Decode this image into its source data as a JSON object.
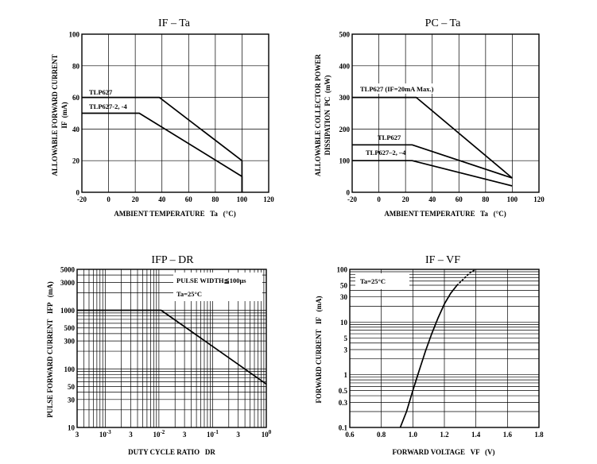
{
  "chart_data": [
    {
      "type": "line",
      "title": "IF – Ta",
      "xlabel": "AMBIENT TEMPERATURE   Ta   (°C)",
      "ylabel": "ALLOWABLE FORWARD CURRENT",
      "ylabel_sub": "IF  (mA)",
      "xlim": [
        -20,
        120
      ],
      "ylim": [
        0,
        100
      ],
      "xticks": [
        -20,
        0,
        20,
        40,
        60,
        80,
        100,
        120
      ],
      "yticks": [
        0,
        20,
        40,
        60,
        80,
        100
      ],
      "grid": true,
      "series": [
        {
          "name": "TLP627",
          "x": [
            -20,
            38,
            100,
            100
          ],
          "y": [
            60,
            60,
            20,
            0
          ]
        },
        {
          "name": "TLP627-2, -4",
          "x": [
            -20,
            23,
            100,
            100
          ],
          "y": [
            50,
            50,
            10,
            0
          ]
        }
      ]
    },
    {
      "type": "line",
      "title": "PC – Ta",
      "xlabel": "AMBIENT TEMPERATURE   Ta   (°C)",
      "ylabel": "ALLOWABLE COLLECTOR POWER",
      "ylabel_sub": "DISSIPATION  PC  (mW)",
      "xlim": [
        -20,
        120
      ],
      "ylim": [
        0,
        500
      ],
      "xticks": [
        -20,
        0,
        20,
        40,
        60,
        80,
        100,
        120
      ],
      "yticks": [
        0,
        100,
        200,
        300,
        400,
        500
      ],
      "grid": true,
      "series": [
        {
          "name": "TLP627 (IF=20mA Max.)",
          "x": [
            -20,
            28,
            100
          ],
          "y": [
            300,
            300,
            45
          ]
        },
        {
          "name": "TLP627",
          "x": [
            -20,
            25,
            100
          ],
          "y": [
            150,
            150,
            45
          ]
        },
        {
          "name": "TLP627–2, –4",
          "x": [
            -20,
            25,
            100
          ],
          "y": [
            100,
            100,
            20
          ]
        }
      ]
    },
    {
      "type": "line",
      "title": "IFP – DR",
      "xlabel": "DUTY CYCLE RATIO   DR",
      "ylabel": "PULSE FORWARD CURRENT   IFP   (mA)",
      "xscale": "log",
      "yscale": "log",
      "xlim": [
        0.0003,
        1
      ],
      "ylim": [
        10,
        5000
      ],
      "xticks": [
        0.0003,
        0.001,
        0.003,
        0.01,
        0.03,
        0.1,
        0.3,
        1
      ],
      "xtick_labels": [
        "3",
        "10^-3",
        "3",
        "10^-2",
        "3",
        "10^-1",
        "3",
        "10^0"
      ],
      "yticks": [
        10,
        30,
        50,
        100,
        300,
        500,
        1000,
        3000,
        5000
      ],
      "grid": true,
      "annotations": [
        "PULSE WIDTH≦100μs",
        "Ta=25°C"
      ],
      "series": [
        {
          "name": "",
          "x": [
            0.0003,
            0.011,
            1
          ],
          "y": [
            1000,
            1000,
            55
          ]
        }
      ]
    },
    {
      "type": "line",
      "title": "IF – VF",
      "xlabel": "FORWARD VOLTAGE   VF   (V)",
      "ylabel": "FORWARD CURRENT   IF   (mA)",
      "yscale": "log",
      "xlim": [
        0.6,
        1.8
      ],
      "ylim": [
        0.1,
        100
      ],
      "xticks": [
        0.6,
        0.8,
        1.0,
        1.2,
        1.4,
        1.6,
        1.8
      ],
      "xtick_labels": [
        "0.6",
        "0.8",
        "1.0",
        "1.2",
        "1.4",
        "1.6",
        "1.8"
      ],
      "yticks": [
        0.1,
        0.3,
        0.5,
        1,
        3,
        5,
        10,
        30,
        50,
        100
      ],
      "ytick_labels": [
        "0.1",
        "0.3",
        "0.5",
        "1",
        "3",
        "5",
        "10",
        "30",
        "50",
        "100"
      ],
      "grid": true,
      "annotations": [
        "Ta=25°C"
      ],
      "series": [
        {
          "name": "",
          "x": [
            0.92,
            0.96,
            1.0,
            1.04,
            1.08,
            1.12,
            1.16,
            1.2,
            1.24,
            1.28
          ],
          "y": [
            0.1,
            0.2,
            0.5,
            1.2,
            2.8,
            6,
            12,
            22,
            35,
            50
          ]
        },
        {
          "name": "",
          "style": "dotted",
          "x": [
            1.28,
            1.32,
            1.36,
            1.4
          ],
          "y": [
            50,
            65,
            85,
            100
          ]
        }
      ]
    }
  ]
}
